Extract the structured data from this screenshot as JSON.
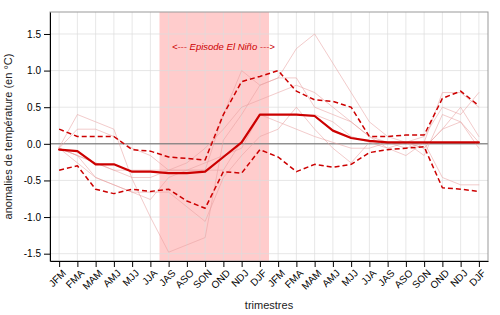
{
  "chart_data": {
    "type": "line",
    "xlabel": "trimestres",
    "ylabel": "anomalies de température (en °C)",
    "categories": [
      "JFM",
      "FMA",
      "MAM",
      "AMJ",
      "MJJ",
      "JJA",
      "JAS",
      "ASO",
      "SON",
      "OND",
      "NDJ",
      "DJF",
      "JFM",
      "FMA",
      "MAM",
      "AMJ",
      "MJJ",
      "JJA",
      "JAS",
      "ASO",
      "SON",
      "OND",
      "NDJ",
      "DJF"
    ],
    "series": [
      {
        "color": "#e8a0a0",
        "line_style": "solid",
        "values": [
          -0.05,
          0.4,
          0.3,
          0.2,
          -0.48,
          -1.0,
          -1.48,
          -1.38,
          -1.28,
          0.05,
          0.4,
          0.8,
          0.9,
          1.3,
          1.5,
          1.1,
          0.7,
          0.3,
          0.1,
          0.02,
          -0.06,
          0.2,
          0.5,
          0.1
        ]
      },
      {
        "color": "#e8a0a0",
        "line_style": "solid",
        "values": [
          -0.06,
          -0.16,
          -0.46,
          -0.56,
          -0.66,
          -0.66,
          -0.66,
          -0.86,
          -1.06,
          -0.46,
          -0.16,
          0.1,
          0.2,
          0.5,
          0.2,
          -0.06,
          -0.26,
          0.02,
          0.02,
          0.02,
          -0.16,
          0.4,
          0.3,
          0.02
        ]
      },
      {
        "color": "#e8a0a0",
        "line_style": "solid",
        "values": [
          -0.06,
          -0.16,
          -0.26,
          -0.36,
          -0.36,
          -0.36,
          -0.36,
          -0.36,
          -0.36,
          -0.36,
          0.04,
          0.4,
          0.4,
          0.4,
          0.4,
          0.3,
          0.1,
          0.02,
          -0.06,
          -0.16,
          0.02,
          -0.46,
          -0.56,
          -0.56
        ]
      },
      {
        "color": "#e8a0a0",
        "line_style": "solid",
        "values": [
          -0.06,
          0.2,
          0.2,
          0.1,
          -0.06,
          -0.16,
          -0.36,
          -0.36,
          -0.36,
          0.4,
          1.0,
          0.8,
          0.9,
          0.9,
          0.5,
          0.4,
          0.3,
          0.1,
          0.02,
          -0.06,
          0.02,
          0.7,
          0.7,
          0.5
        ]
      },
      {
        "color": "#e8a0a0",
        "line_style": "solid",
        "values": [
          -0.06,
          -0.26,
          -0.46,
          -0.56,
          -0.66,
          -0.76,
          -0.46,
          -0.36,
          -0.26,
          -0.16,
          -0.06,
          0.4,
          0.3,
          0.2,
          0.1,
          0.02,
          -0.06,
          -0.06,
          0.02,
          0.02,
          -0.06,
          0.2,
          0.3,
          -0.06
        ]
      },
      {
        "color": "#e8a0a0",
        "line_style": "solid",
        "values": [
          -0.06,
          -0.16,
          -0.26,
          -0.36,
          -0.46,
          -0.46,
          -0.36,
          -0.26,
          -0.06,
          0.2,
          0.5,
          0.6,
          0.7,
          0.8,
          0.7,
          0.5,
          0.3,
          0.1,
          -0.06,
          0.02,
          0.1,
          0.5,
          0.4,
          0.7
        ]
      },
      {
        "color": "#cc0000",
        "line_style": "dashed",
        "values": [
          0.2,
          0.1,
          0.1,
          0.1,
          -0.08,
          -0.1,
          -0.18,
          -0.2,
          -0.22,
          0.4,
          0.85,
          0.92,
          1.0,
          0.72,
          0.6,
          0.58,
          0.5,
          0.1,
          0.1,
          0.12,
          0.12,
          0.62,
          0.72,
          0.52
        ]
      },
      {
        "color": "#cc0000",
        "line_style": "dashed",
        "values": [
          -0.36,
          -0.3,
          -0.62,
          -0.68,
          -0.62,
          -0.65,
          -0.62,
          -0.78,
          -0.88,
          -0.38,
          -0.4,
          -0.08,
          -0.18,
          -0.38,
          -0.28,
          -0.32,
          -0.28,
          -0.12,
          -0.08,
          -0.06,
          -0.04,
          -0.6,
          -0.62,
          -0.65
        ]
      },
      {
        "color": "#cc0000",
        "line_style": "solid",
        "values": [
          -0.08,
          -0.1,
          -0.28,
          -0.28,
          -0.38,
          -0.38,
          -0.4,
          -0.4,
          -0.38,
          -0.18,
          0.02,
          0.4,
          0.4,
          0.4,
          0.38,
          0.18,
          0.08,
          0.04,
          0.02,
          0.02,
          0.02,
          0.02,
          0.02,
          0.02
        ]
      }
    ],
    "ylim": [
      -1.6,
      1.8
    ],
    "yticks": [
      -1.5,
      {
        "value": -1,
        "label": "-1.0"
      },
      -0.5,
      {
        "value": 0,
        "label": "0.0"
      },
      0.5,
      {
        "value": 1,
        "label": "1.0"
      },
      1.5
    ],
    "grid": true,
    "shaded_span": {
      "start": 6,
      "end": 12,
      "color": "#ffcccc"
    },
    "reference_line": {
      "y": 0,
      "color": "#666666"
    },
    "annotations": [
      {
        "text": "<--- Episode El Niño --->",
        "x": 9.0,
        "y": 1.32,
        "color": "#cc0000"
      }
    ]
  }
}
